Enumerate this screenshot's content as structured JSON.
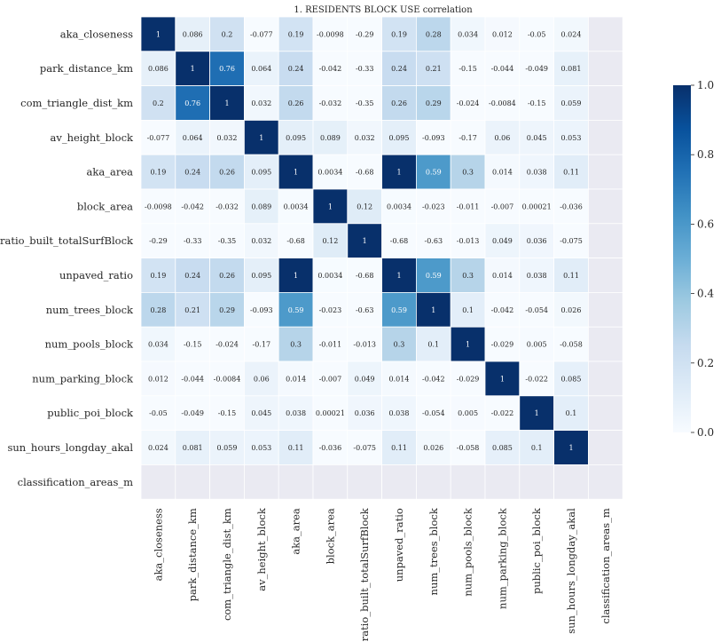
{
  "chart_data": {
    "type": "heatmap",
    "title": "1. RESIDENTS BLOCK USE correlation",
    "xlabel": "",
    "ylabel": "",
    "labels": [
      "aka_closeness",
      "park_distance_km",
      "com_triangle_dist_km",
      "av_height_block",
      "aka_area",
      "block_area",
      "ratio_built_totalSurfBlock",
      "unpaved_ratio",
      "num_trees_block",
      "num_pools_block",
      "num_parking_block",
      "public_poi_block",
      "sun_hours_longday_akal",
      "classification_areas_m"
    ],
    "matrix": [
      [
        "1",
        "0.086",
        "0.2",
        "-0.077",
        "0.19",
        "-0.0098",
        "-0.29",
        "0.19",
        "0.28",
        "0.034",
        "0.012",
        "-0.05",
        "0.024",
        null
      ],
      [
        "0.086",
        "1",
        "0.76",
        "0.064",
        "0.24",
        "-0.042",
        "-0.33",
        "0.24",
        "0.21",
        "-0.15",
        "-0.044",
        "-0.049",
        "0.081",
        null
      ],
      [
        "0.2",
        "0.76",
        "1",
        "0.032",
        "0.26",
        "-0.032",
        "-0.35",
        "0.26",
        "0.29",
        "-0.024",
        "-0.0084",
        "-0.15",
        "0.059",
        null
      ],
      [
        "-0.077",
        "0.064",
        "0.032",
        "1",
        "0.095",
        "0.089",
        "0.032",
        "0.095",
        "-0.093",
        "-0.17",
        "0.06",
        "0.045",
        "0.053",
        null
      ],
      [
        "0.19",
        "0.24",
        "0.26",
        "0.095",
        "1",
        "0.0034",
        "-0.68",
        "1",
        "0.59",
        "0.3",
        "0.014",
        "0.038",
        "0.11",
        null
      ],
      [
        "-0.0098",
        "-0.042",
        "-0.032",
        "0.089",
        "0.0034",
        "1",
        "0.12",
        "0.0034",
        "-0.023",
        "-0.011",
        "-0.007",
        "0.00021",
        "-0.036",
        null
      ],
      [
        "-0.29",
        "-0.33",
        "-0.35",
        "0.032",
        "-0.68",
        "0.12",
        "1",
        "-0.68",
        "-0.63",
        "-0.013",
        "0.049",
        "0.036",
        "-0.075",
        null
      ],
      [
        "0.19",
        "0.24",
        "0.26",
        "0.095",
        "1",
        "0.0034",
        "-0.68",
        "1",
        "0.59",
        "0.3",
        "0.014",
        "0.038",
        "0.11",
        null
      ],
      [
        "0.28",
        "0.21",
        "0.29",
        "-0.093",
        "0.59",
        "-0.023",
        "-0.63",
        "0.59",
        "1",
        "0.1",
        "-0.042",
        "-0.054",
        "0.026",
        null
      ],
      [
        "0.034",
        "-0.15",
        "-0.024",
        "-0.17",
        "0.3",
        "-0.011",
        "-0.013",
        "0.3",
        "0.1",
        "1",
        "-0.029",
        "0.005",
        "-0.058",
        null
      ],
      [
        "0.012",
        "-0.044",
        "-0.0084",
        "0.06",
        "0.014",
        "-0.007",
        "0.049",
        "0.014",
        "-0.042",
        "-0.029",
        "1",
        "-0.022",
        "0.085",
        null
      ],
      [
        "-0.05",
        "-0.049",
        "-0.15",
        "0.045",
        "0.038",
        "0.00021",
        "0.036",
        "0.038",
        "-0.054",
        "0.005",
        "-0.022",
        "1",
        "0.1",
        null
      ],
      [
        "0.024",
        "0.081",
        "0.059",
        "0.053",
        "0.11",
        "-0.036",
        "-0.075",
        "0.11",
        "0.026",
        "-0.058",
        "0.085",
        "0.1",
        "1",
        null
      ],
      [
        null,
        null,
        null,
        null,
        null,
        null,
        null,
        null,
        null,
        null,
        null,
        null,
        null,
        null
      ]
    ],
    "vmin": 0.0,
    "vmax": 1.0,
    "colormap": "Blues",
    "colorbar_ticks": [
      "0.0",
      "0.2",
      "0.4",
      "0.6",
      "0.8",
      "1.0"
    ],
    "nan_color": "#eaeaf2",
    "grid_line_color": "#ffffff",
    "annotated": true,
    "legend": "colorbar-right"
  }
}
